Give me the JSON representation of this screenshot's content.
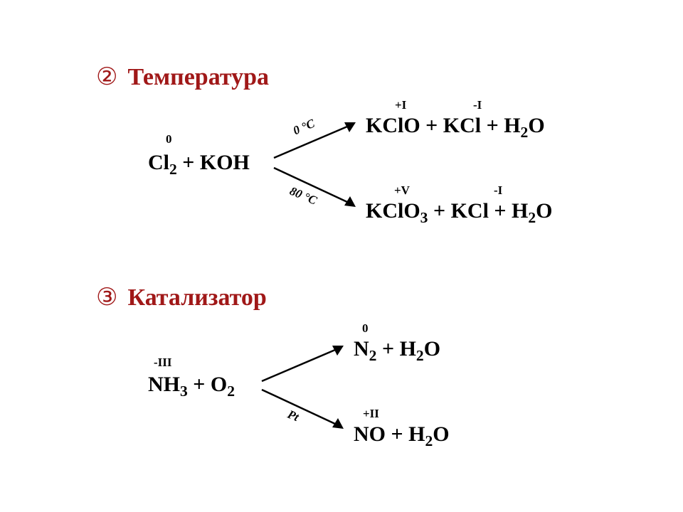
{
  "colors": {
    "heading": "#a01818",
    "text": "#000000",
    "arrow": "#000000",
    "background": "#ffffff"
  },
  "font_sizes": {
    "heading_pt": 26,
    "formula_pt": 23,
    "oxidation_pt": 13,
    "condition_pt": 13,
    "circled_pt": 26
  },
  "section1": {
    "bullet_glyph": "②",
    "title": "Температура",
    "reactants": {
      "formula_html": "Cl<span class='sub'>2</span> + KOH",
      "oxidation_labels": [
        {
          "text": "0",
          "over": "Cl"
        }
      ]
    },
    "branch_top": {
      "condition": "0 °C",
      "products_html": "KClO + KCl + H<span class='sub'>2</span>O",
      "oxidation_labels": [
        {
          "text": "+I",
          "over": "Cl_in_KClO"
        },
        {
          "text": "-I",
          "over": "Cl_in_KCl"
        }
      ]
    },
    "branch_bottom": {
      "condition": "80 °C",
      "products_html": "KClO<span class='sub'>3</span> + KCl + H<span class='sub'>2</span>O",
      "oxidation_labels": [
        {
          "text": "+V",
          "over": "Cl_in_KClO3"
        },
        {
          "text": "-I",
          "over": "Cl_in_KCl"
        }
      ]
    },
    "arrows": {
      "stroke_width": 2,
      "head_length": 12,
      "head_width": 9
    }
  },
  "section2": {
    "bullet_glyph": "③",
    "title": "Катализатор",
    "reactants": {
      "formula_html": "NH<span class='sub'>3</span> + O<span class='sub'>2</span>",
      "oxidation_labels": [
        {
          "text": "-III",
          "over": "N"
        }
      ]
    },
    "branch_top": {
      "condition": "",
      "products_html": "N<span class='sub'>2</span> + H<span class='sub'>2</span>O",
      "oxidation_labels": [
        {
          "text": "0",
          "over": "N"
        }
      ]
    },
    "branch_bottom": {
      "condition": "Pt",
      "products_html": "NO + H<span class='sub'>2</span>O",
      "oxidation_labels": [
        {
          "text": "+II",
          "over": "N"
        }
      ]
    },
    "arrows": {
      "stroke_width": 2,
      "head_length": 12,
      "head_width": 9
    }
  }
}
